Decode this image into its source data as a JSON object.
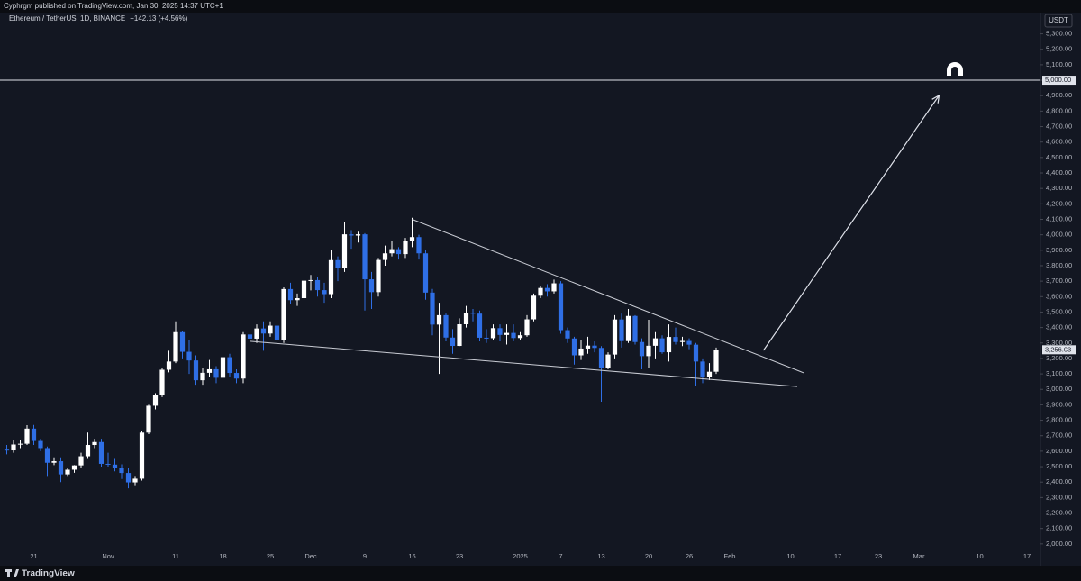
{
  "header": "Cyphrgm published on TradingView.com, Jan 30, 2025 14:37 UTC+1",
  "symbol": "Ethereum / TetherUS, 1D, BINANCE",
  "change_label": "+142.13 (+4.56%)",
  "currency": "USDT",
  "brand": "TradingView",
  "chart_data": {
    "type": "candlestick",
    "up_color": "#ffffff",
    "down_color": "#2f6fe6",
    "xlim": [
      "2024-10-16",
      "2025-03-19"
    ],
    "ylim": [
      1900,
      5350
    ],
    "x": [
      "2024-10-17",
      "2024-10-18",
      "2024-10-19",
      "2024-10-20",
      "2024-10-21",
      "2024-10-22",
      "2024-10-23",
      "2024-10-24",
      "2024-10-25",
      "2024-10-26",
      "2024-10-27",
      "2024-10-28",
      "2024-10-29",
      "2024-10-30",
      "2024-10-31",
      "2024-11-01",
      "2024-11-02",
      "2024-11-03",
      "2024-11-04",
      "2024-11-05",
      "2024-11-06",
      "2024-11-07",
      "2024-11-08",
      "2024-11-09",
      "2024-11-10",
      "2024-11-11",
      "2024-11-12",
      "2024-11-13",
      "2024-11-14",
      "2024-11-15",
      "2024-11-16",
      "2024-11-17",
      "2024-11-18",
      "2024-11-19",
      "2024-11-20",
      "2024-11-21",
      "2024-11-22",
      "2024-11-23",
      "2024-11-24",
      "2024-11-25",
      "2024-11-26",
      "2024-11-27",
      "2024-11-28",
      "2024-11-29",
      "2024-11-30",
      "2024-12-01",
      "2024-12-02",
      "2024-12-03",
      "2024-12-04",
      "2024-12-05",
      "2024-12-06",
      "2024-12-07",
      "2024-12-08",
      "2024-12-09",
      "2024-12-10",
      "2024-12-11",
      "2024-12-12",
      "2024-12-13",
      "2024-12-14",
      "2024-12-15",
      "2024-12-16",
      "2024-12-17",
      "2024-12-18",
      "2024-12-19",
      "2024-12-20",
      "2024-12-21",
      "2024-12-22",
      "2024-12-23",
      "2024-12-24",
      "2024-12-25",
      "2024-12-26",
      "2024-12-27",
      "2024-12-28",
      "2024-12-29",
      "2024-12-30",
      "2024-12-31",
      "2025-01-01",
      "2025-01-02",
      "2025-01-03",
      "2025-01-04",
      "2025-01-05",
      "2025-01-06",
      "2025-01-07",
      "2025-01-08",
      "2025-01-09",
      "2025-01-10",
      "2025-01-11",
      "2025-01-12",
      "2025-01-13",
      "2025-01-14",
      "2025-01-15",
      "2025-01-16",
      "2025-01-17",
      "2025-01-18",
      "2025-01-19",
      "2025-01-20",
      "2025-01-21",
      "2025-01-22",
      "2025-01-23",
      "2025-01-24",
      "2025-01-25",
      "2025-01-26",
      "2025-01-27",
      "2025-01-28",
      "2025-01-29",
      "2025-01-30"
    ],
    "open": [
      2610,
      2605,
      2643,
      2648,
      2746,
      2666,
      2620,
      2525,
      2535,
      2450,
      2480,
      2508,
      2567,
      2640,
      2659,
      2518,
      2513,
      2492,
      2459,
      2398,
      2422,
      2720,
      2894,
      2962,
      3127,
      3180,
      3370,
      3243,
      3187,
      3059,
      3107,
      3130,
      3075,
      3208,
      3106,
      3070,
      3355,
      3328,
      3394,
      3361,
      3412,
      3322,
      3649,
      3577,
      3590,
      3703,
      3707,
      3642,
      3616,
      3836,
      3783,
      4003,
      3995,
      4003,
      3712,
      3629,
      3837,
      3880,
      3907,
      3875,
      3958,
      3985,
      3880,
      3626,
      3419,
      3480,
      3335,
      3281,
      3421,
      3495,
      3490,
      3334,
      3331,
      3396,
      3352,
      3365,
      3332,
      3350,
      3453,
      3606,
      3656,
      3634,
      3686,
      3383,
      3329,
      3220,
      3264,
      3283,
      3268,
      3137,
      3225,
      3452,
      3312,
      3475,
      3306,
      3215,
      3282,
      3330,
      3240,
      3339,
      3306,
      3313,
      3289,
      3180,
      3078,
      3113.9
    ],
    "high": [
      2640,
      2675,
      2675,
      2768,
      2770,
      2680,
      2630,
      2560,
      2560,
      2490,
      2510,
      2590,
      2720,
      2680,
      2680,
      2590,
      2550,
      2515,
      2490,
      2440,
      2730,
      2900,
      2975,
      3140,
      3250,
      3440,
      3380,
      3320,
      3220,
      3140,
      3190,
      3150,
      3220,
      3230,
      3130,
      3370,
      3430,
      3420,
      3440,
      3440,
      3430,
      3660,
      3690,
      3620,
      3720,
      3740,
      3730,
      3690,
      3900,
      3860,
      4080,
      4030,
      4020,
      4010,
      3760,
      3850,
      3930,
      3960,
      3920,
      3980,
      4110,
      4000,
      3900,
      3650,
      3560,
      3490,
      3390,
      3460,
      3540,
      3520,
      3510,
      3390,
      3420,
      3420,
      3420,
      3420,
      3370,
      3480,
      3620,
      3670,
      3680,
      3710,
      3700,
      3400,
      3340,
      3320,
      3340,
      3310,
      3280,
      3240,
      3480,
      3490,
      3520,
      3480,
      3330,
      3450,
      3370,
      3350,
      3420,
      3400,
      3340,
      3330,
      3300,
      3200,
      3170,
      3270
    ],
    "low": [
      2580,
      2590,
      2620,
      2640,
      2640,
      2600,
      2440,
      2510,
      2400,
      2440,
      2460,
      2490,
      2550,
      2620,
      2500,
      2500,
      2470,
      2420,
      2360,
      2380,
      2410,
      2710,
      2870,
      2950,
      3110,
      3170,
      3200,
      3100,
      3030,
      3030,
      3080,
      3040,
      3060,
      3080,
      3040,
      3040,
      3280,
      3300,
      3250,
      3340,
      3260,
      3300,
      3550,
      3540,
      3580,
      3640,
      3600,
      3560,
      3590,
      3700,
      3760,
      3910,
      3950,
      3510,
      3520,
      3600,
      3800,
      3860,
      3840,
      3850,
      3920,
      3840,
      3580,
      3350,
      3100,
      3310,
      3230,
      3280,
      3400,
      3440,
      3310,
      3300,
      3320,
      3310,
      3290,
      3310,
      3320,
      3340,
      3440,
      3590,
      3600,
      3620,
      3360,
      3300,
      3160,
      3190,
      3230,
      3240,
      2920,
      3130,
      3200,
      3270,
      3300,
      3290,
      3130,
      3140,
      3200,
      3230,
      3180,
      3290,
      3280,
      3260,
      3020,
      3040,
      3060,
      3100
    ],
    "close": [
      2605,
      2643,
      2648,
      2746,
      2666,
      2620,
      2525,
      2535,
      2450,
      2480,
      2508,
      2567,
      2640,
      2659,
      2518,
      2513,
      2492,
      2459,
      2398,
      2422,
      2720,
      2894,
      2962,
      3127,
      3180,
      3370,
      3243,
      3187,
      3059,
      3107,
      3130,
      3075,
      3208,
      3106,
      3070,
      3355,
      3328,
      3394,
      3361,
      3412,
      3322,
      3649,
      3577,
      3590,
      3703,
      3707,
      3642,
      3616,
      3836,
      3783,
      4003,
      3995,
      4003,
      3712,
      3629,
      3837,
      3880,
      3907,
      3875,
      3958,
      3985,
      3880,
      3626,
      3419,
      3480,
      3335,
      3281,
      3421,
      3495,
      3490,
      3334,
      3331,
      3396,
      3352,
      3365,
      3332,
      3350,
      3453,
      3606,
      3656,
      3634,
      3686,
      3383,
      3329,
      3220,
      3264,
      3283,
      3268,
      3137,
      3225,
      3452,
      3312,
      3475,
      3306,
      3215,
      3282,
      3330,
      3240,
      3339,
      3306,
      3313,
      3289,
      3180,
      3078,
      3113.9,
      3256.03
    ],
    "last_price": {
      "value": 3256.03,
      "label": "3,256.03"
    },
    "level": {
      "value": 5000,
      "label": "5,000.00"
    },
    "trendlines": [
      {
        "x": [
          "2024-12-16",
          "2025-02-12"
        ],
        "y": [
          4100,
          3106
        ]
      },
      {
        "x": [
          "2024-11-22",
          "2025-02-11"
        ],
        "y": [
          3311,
          3018
        ]
      }
    ],
    "arrow": {
      "x": [
        "2025-02-06",
        "2025-03-04"
      ],
      "y": [
        3252,
        4902
      ]
    },
    "xticks": [
      {
        "value": "2024-10-21",
        "label": "21"
      },
      {
        "value": "2024-11-01",
        "label": "Nov"
      },
      {
        "value": "2024-11-11",
        "label": "11"
      },
      {
        "value": "2024-11-18",
        "label": "18"
      },
      {
        "value": "2024-11-25",
        "label": "25"
      },
      {
        "value": "2024-12-01",
        "label": "Dec"
      },
      {
        "value": "2024-12-09",
        "label": "9"
      },
      {
        "value": "2024-12-16",
        "label": "16"
      },
      {
        "value": "2024-12-23",
        "label": "23"
      },
      {
        "value": "2025-01-01",
        "label": "2025"
      },
      {
        "value": "2025-01-07",
        "label": "7"
      },
      {
        "value": "2025-01-13",
        "label": "13"
      },
      {
        "value": "2025-01-20",
        "label": "20"
      },
      {
        "value": "2025-01-26",
        "label": "26"
      },
      {
        "value": "2025-02-01",
        "label": "Feb"
      },
      {
        "value": "2025-02-10",
        "label": "10"
      },
      {
        "value": "2025-02-17",
        "label": "17"
      },
      {
        "value": "2025-02-23",
        "label": "23"
      },
      {
        "value": "2025-03-01",
        "label": "Mar"
      },
      {
        "value": "2025-03-10",
        "label": "10"
      },
      {
        "value": "2025-03-17",
        "label": "17"
      }
    ],
    "yticks": [
      {
        "value": 2000,
        "label": "2,000.00"
      },
      {
        "value": 2100,
        "label": "2,100.00"
      },
      {
        "value": 2200,
        "label": "2,200.00"
      },
      {
        "value": 2300,
        "label": "2,300.00"
      },
      {
        "value": 2400,
        "label": "2,400.00"
      },
      {
        "value": 2500,
        "label": "2,500.00"
      },
      {
        "value": 2600,
        "label": "2,600.00"
      },
      {
        "value": 2700,
        "label": "2,700.00"
      },
      {
        "value": 2800,
        "label": "2,800.00"
      },
      {
        "value": 2900,
        "label": "2,900.00"
      },
      {
        "value": 3000,
        "label": "3,000.00"
      },
      {
        "value": 3100,
        "label": "3,100.00"
      },
      {
        "value": 3200,
        "label": "3,200.00"
      },
      {
        "value": 3300,
        "label": "3,300.00"
      },
      {
        "value": 3400,
        "label": "3,400.00"
      },
      {
        "value": 3500,
        "label": "3,500.00"
      },
      {
        "value": 3600,
        "label": "3,600.00"
      },
      {
        "value": 3700,
        "label": "3,700.00"
      },
      {
        "value": 3800,
        "label": "3,800.00"
      },
      {
        "value": 3900,
        "label": "3,900.00"
      },
      {
        "value": 4000,
        "label": "4,000.00"
      },
      {
        "value": 4100,
        "label": "4,100.00"
      },
      {
        "value": 4200,
        "label": "4,200.00"
      },
      {
        "value": 4300,
        "label": "4,300.00"
      },
      {
        "value": 4400,
        "label": "4,400.00"
      },
      {
        "value": 4500,
        "label": "4,500.00"
      },
      {
        "value": 4600,
        "label": "4,600.00"
      },
      {
        "value": 4700,
        "label": "4,700.00"
      },
      {
        "value": 4800,
        "label": "4,800.00"
      },
      {
        "value": 4900,
        "label": "4,900.00"
      },
      {
        "value": 5000,
        "label": "5,000.00"
      },
      {
        "value": 5100,
        "label": "5,100.00"
      },
      {
        "value": 5200,
        "label": "5,200.00"
      },
      {
        "value": 5300,
        "label": "5,300.00"
      }
    ]
  }
}
